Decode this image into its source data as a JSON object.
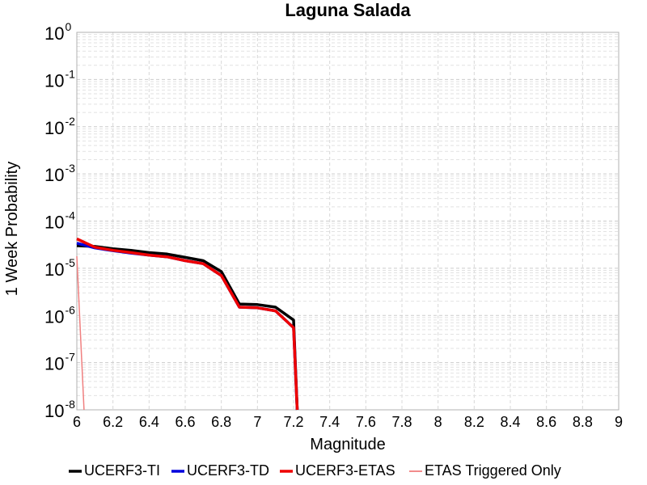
{
  "chart_data": {
    "type": "line",
    "title": "Laguna Salada",
    "xlabel": "Magnitude",
    "ylabel": "1 Week Probability",
    "xlim": [
      6,
      9
    ],
    "ylim": [
      1e-08,
      1
    ],
    "yscale": "log",
    "grid": true,
    "legend_position": "bottom",
    "x_ticks": [
      "6",
      "6.2",
      "6.4",
      "6.6",
      "6.8",
      "7",
      "7.2",
      "7.4",
      "7.6",
      "7.8",
      "8",
      "8.2",
      "8.4",
      "8.6",
      "8.8",
      "9"
    ],
    "y_ticks": [
      {
        "base": "10",
        "exp": "0"
      },
      {
        "base": "10",
        "exp": "-1"
      },
      {
        "base": "10",
        "exp": "-2"
      },
      {
        "base": "10",
        "exp": "-3"
      },
      {
        "base": "10",
        "exp": "-4"
      },
      {
        "base": "10",
        "exp": "-5"
      },
      {
        "base": "10",
        "exp": "-6"
      },
      {
        "base": "10",
        "exp": "-7"
      },
      {
        "base": "10",
        "exp": "-8"
      }
    ],
    "series": [
      {
        "name": "UCERF3-TI",
        "color": "#000000",
        "width": 3.5,
        "x": [
          6.0,
          6.1,
          6.2,
          6.3,
          6.4,
          6.5,
          6.6,
          6.7,
          6.8,
          6.9,
          7.0,
          7.1,
          7.2,
          7.22
        ],
        "y": [
          3e-05,
          2.9e-05,
          2.6e-05,
          2.4e-05,
          2.15e-05,
          2e-05,
          1.7e-05,
          1.45e-05,
          8.5e-06,
          1.75e-06,
          1.7e-06,
          1.5e-06,
          8e-07,
          1e-08
        ]
      },
      {
        "name": "UCERF3-TD",
        "color": "#0000dd",
        "width": 3.5,
        "x": [
          6.0,
          6.1,
          6.2,
          6.3,
          6.4,
          6.5,
          6.6,
          6.7,
          6.8,
          6.9,
          7.0,
          7.1,
          7.2,
          7.22
        ],
        "y": [
          3.4e-05,
          2.7e-05,
          2.35e-05,
          2.1e-05,
          1.9e-05,
          1.75e-05,
          1.45e-05,
          1.25e-05,
          7e-06,
          1.5e-06,
          1.45e-06,
          1.25e-06,
          5.5e-07,
          1e-08
        ]
      },
      {
        "name": "UCERF3-ETAS",
        "color": "#ee0000",
        "width": 3.5,
        "x": [
          6.0,
          6.1,
          6.2,
          6.3,
          6.4,
          6.5,
          6.6,
          6.7,
          6.8,
          6.9,
          7.0,
          7.1,
          7.2,
          7.22
        ],
        "y": [
          4.2e-05,
          2.8e-05,
          2.4e-05,
          2.15e-05,
          1.9e-05,
          1.75e-05,
          1.45e-05,
          1.25e-05,
          7e-06,
          1.5e-06,
          1.45e-06,
          1.25e-06,
          5.5e-07,
          1e-08
        ]
      },
      {
        "name": "ETAS Triggered Only",
        "color": "#f08080",
        "width": 1.5,
        "x": [
          6.0,
          6.04
        ],
        "y": [
          1.8e-05,
          1e-08
        ]
      }
    ]
  }
}
